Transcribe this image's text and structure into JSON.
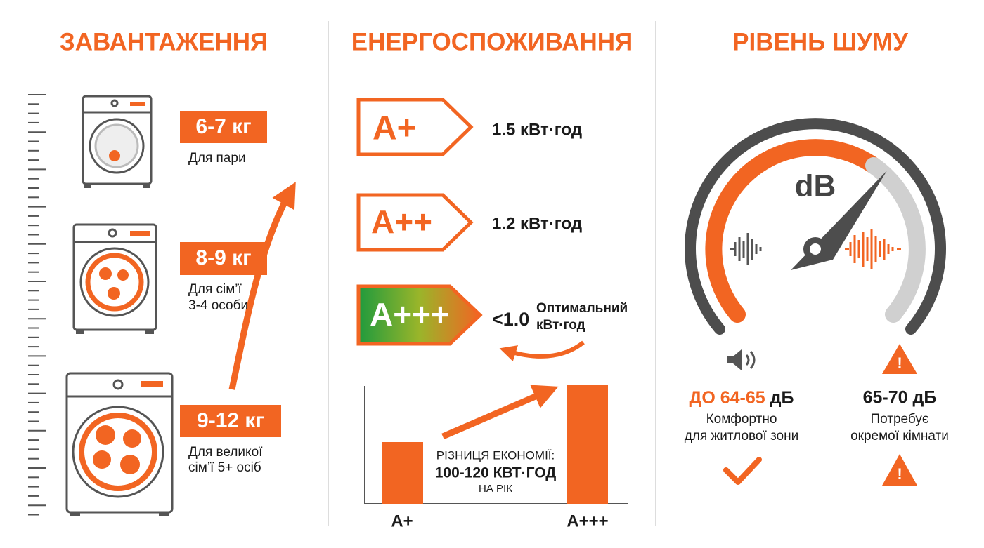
{
  "loading": {
    "title": "ЗАВАНТАЖЕННЯ",
    "items": [
      {
        "weight": "6-7 кг",
        "desc": [
          "Для пари"
        ]
      },
      {
        "weight": "8-9 кг",
        "desc": [
          "Для сім’ї",
          "3-4 особи"
        ]
      },
      {
        "weight": "9-12 кг",
        "desc": [
          "Для великої",
          "сім’ї 5+ осіб"
        ]
      }
    ]
  },
  "energy": {
    "title": "ЕНЕРГОСПОЖИВАННЯ",
    "classes": [
      {
        "label": "A+",
        "consumption": "1.5 кВт·год"
      },
      {
        "label": "A++",
        "consumption": "1.2 кВт·год"
      },
      {
        "label": "A+++",
        "consumption": "<1.0",
        "note": [
          "Оптимальний",
          "кВт·год"
        ]
      }
    ],
    "comparison": {
      "text": [
        "РІЗНИЦЯ ЕКОНОМІЇ:",
        "100-120 КВТ·ГОД",
        "НА РІК"
      ],
      "bars": [
        "A+",
        "A+++"
      ]
    }
  },
  "noise": {
    "title": "РІВЕНЬ ШУМУ",
    "unit": "dB",
    "levels": [
      {
        "range": "ДО 64-65",
        "unit": "дБ",
        "desc": [
          "Комфортно",
          "для житлової зони"
        ]
      },
      {
        "range": "65-70 дБ",
        "desc": [
          "Потребує",
          "окремої кімнати"
        ]
      }
    ]
  }
}
